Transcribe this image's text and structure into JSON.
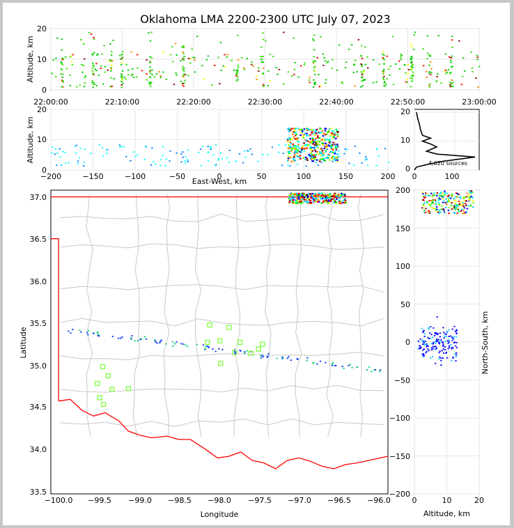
{
  "title": "Oklahoma LMA 2200-2300 UTC July 07, 2023",
  "panels": {
    "time_height": {
      "ylabel": "Altitude, km",
      "yticks": [
        "0",
        "10",
        "20"
      ],
      "xticks": [
        "22:00:00",
        "22:10:00",
        "22:20:00",
        "22:30:00",
        "22:40:00",
        "22:50:00",
        "23:00:00"
      ]
    },
    "ew_height": {
      "ylabel": "Altitude, km",
      "xlabel": "East-West, km",
      "yticks": [
        "0",
        "10",
        "20"
      ],
      "xticks": [
        "−200",
        "−150",
        "−100",
        "−50",
        "0",
        "50",
        "100",
        "150",
        "200"
      ]
    },
    "histogram": {
      "yticks": [
        "0",
        "10",
        "20"
      ],
      "xticks": [
        "0",
        "100"
      ],
      "annotation": "4,620 sources"
    },
    "plan": {
      "xlabel": "Longitude",
      "ylabel": "Latitude",
      "xticks": [
        "−100.0",
        "−99.5",
        "−99.0",
        "−98.5",
        "−98.0",
        "−97.5",
        "−97.0",
        "−96.5",
        "−96.0"
      ],
      "yticks": [
        "33.5",
        "34.0",
        "34.5",
        "35.0",
        "35.5",
        "36.0",
        "36.5",
        "37.0"
      ]
    },
    "ns_height": {
      "xlabel": "Altitude, km",
      "ylabel": "North-South, km",
      "xticks": [
        "0",
        "10",
        "20"
      ],
      "yticks": [
        "−200",
        "−150",
        "−100",
        "−50",
        "0",
        "50",
        "100",
        "150",
        "200"
      ]
    }
  },
  "colors": {
    "state_border": "#ff0000",
    "county_lines": "#c8c8c8",
    "station_marker": "#7fff3f",
    "source_palette": [
      "#0000ff",
      "#00c8ff",
      "#00ffff",
      "#00ff00",
      "#80ff00",
      "#ffff00",
      "#ff8000",
      "#ff0000",
      "#8b0000"
    ]
  },
  "chart_data": [
    {
      "type": "scatter",
      "panel": "time_height",
      "description_units": "x: UTC time, y: altitude km",
      "xlim": [
        "22:00:00",
        "23:00:00"
      ],
      "ylim": [
        0,
        20
      ],
      "activity_bursts_minutes": [
        1.5,
        5.8,
        8.4,
        9.8,
        13.8,
        18.5,
        26.0,
        29.5,
        36.8,
        43.5,
        46.5,
        50.5,
        53.0,
        56.0
      ],
      "altitude_range_km": [
        1,
        19
      ]
    },
    {
      "type": "scatter",
      "panel": "ew_height",
      "xlim": [
        -200,
        200
      ],
      "ylim": [
        0,
        20
      ],
      "main_cluster_x_km": [
        80,
        140
      ],
      "main_cluster_alt_km": [
        3,
        14
      ]
    },
    {
      "type": "line",
      "panel": "altitude_histogram",
      "xlim": [
        0,
        160
      ],
      "ylim": [
        0,
        21
      ],
      "total_sources": 4620,
      "profile": [
        [
          0,
          0
        ],
        [
          5,
          1
        ],
        [
          35,
          2
        ],
        [
          70,
          3
        ],
        [
          150,
          4.5
        ],
        [
          55,
          5.5
        ],
        [
          30,
          6.5
        ],
        [
          55,
          8
        ],
        [
          40,
          9
        ],
        [
          20,
          10
        ],
        [
          40,
          11
        ],
        [
          20,
          12
        ],
        [
          15,
          14
        ],
        [
          12,
          16
        ],
        [
          8,
          18
        ],
        [
          5,
          20
        ]
      ]
    },
    {
      "type": "scatter",
      "panel": "plan_view",
      "xlim": [
        -100.1,
        -95.75
      ],
      "ylim": [
        33.45,
        37.08
      ],
      "stations": [
        [
          -98.05,
          35.47
        ],
        [
          -97.8,
          35.44
        ],
        [
          -97.92,
          35.28
        ],
        [
          -98.08,
          35.26
        ],
        [
          -97.66,
          35.26
        ],
        [
          -97.37,
          35.24
        ],
        [
          -97.42,
          35.18
        ],
        [
          -97.52,
          35.13
        ],
        [
          -97.73,
          35.14
        ],
        [
          -97.91,
          35.01
        ],
        [
          -99.43,
          34.97
        ],
        [
          -99.36,
          34.86
        ],
        [
          -99.5,
          34.77
        ],
        [
          -99.31,
          34.7
        ],
        [
          -99.1,
          34.71
        ],
        [
          -99.47,
          34.6
        ],
        [
          -99.42,
          34.52
        ]
      ]
    },
    {
      "type": "scatter",
      "panel": "ns_height",
      "xlim": [
        0,
        20
      ],
      "ylim": [
        -200,
        200
      ]
    }
  ]
}
